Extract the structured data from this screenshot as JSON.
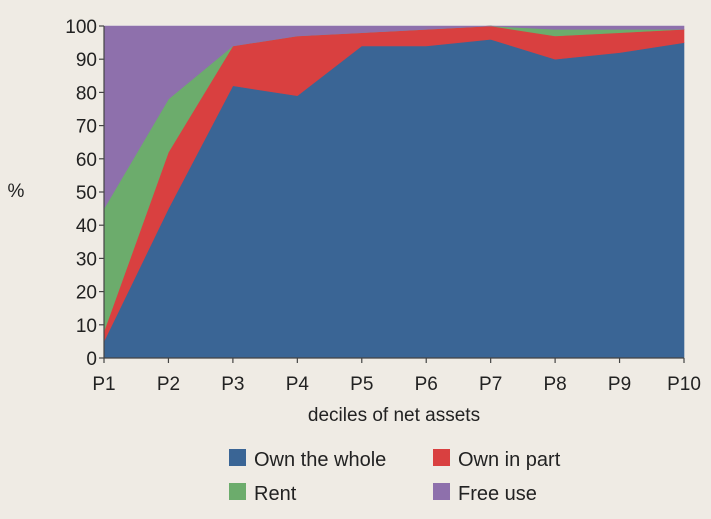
{
  "chart_data": {
    "type": "area",
    "stacked": true,
    "categories": [
      "P1",
      "P2",
      "P3",
      "P4",
      "P5",
      "P6",
      "P7",
      "P8",
      "P9",
      "P10"
    ],
    "series": [
      {
        "name": "Own the whole",
        "color": "#3a6595",
        "values": [
          5,
          45,
          82,
          79,
          94,
          94,
          96,
          90,
          92,
          95
        ]
      },
      {
        "name": "Own in part",
        "color": "#d94040",
        "values": [
          3,
          17,
          12,
          18,
          4,
          5,
          4,
          7,
          6,
          4
        ]
      },
      {
        "name": "Rent",
        "color": "#6cac6c",
        "values": [
          37,
          16,
          0,
          0,
          0,
          0,
          0,
          2,
          1,
          0
        ]
      },
      {
        "name": "Free use",
        "color": "#8e70ac",
        "values": [
          55,
          22,
          6,
          3,
          2,
          1,
          0,
          1,
          1,
          1
        ]
      }
    ],
    "title": "",
    "xlabel": "deciles of net assets",
    "ylabel": "%",
    "ylim": [
      0,
      100
    ],
    "yticks": [
      0,
      10,
      20,
      30,
      40,
      50,
      60,
      70,
      80,
      90,
      100
    ],
    "grid": true,
    "legend_position": "bottom",
    "plot_background": "#dfe3ea",
    "grid_color": "#eef0f4"
  }
}
